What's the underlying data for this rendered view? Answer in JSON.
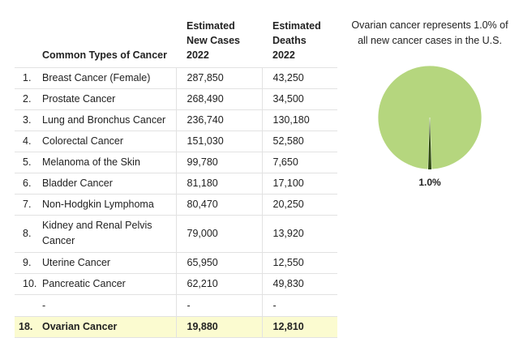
{
  "table": {
    "headers": {
      "type": "Common Types of Cancer",
      "new_cases": "Estimated New Cases 2022",
      "deaths": "Estimated Deaths 2022"
    },
    "rows": [
      {
        "rank": "1.",
        "name": "Breast Cancer (Female)",
        "new_cases": "287,850",
        "deaths": "43,250"
      },
      {
        "rank": "2.",
        "name": "Prostate Cancer",
        "new_cases": "268,490",
        "deaths": "34,500"
      },
      {
        "rank": "3.",
        "name": "Lung and Bronchus Cancer",
        "new_cases": "236,740",
        "deaths": "130,180"
      },
      {
        "rank": "4.",
        "name": "Colorectal Cancer",
        "new_cases": "151,030",
        "deaths": "52,580"
      },
      {
        "rank": "5.",
        "name": "Melanoma of the Skin",
        "new_cases": "99,780",
        "deaths": "7,650"
      },
      {
        "rank": "6.",
        "name": "Bladder Cancer",
        "new_cases": "81,180",
        "deaths": "17,100"
      },
      {
        "rank": "7.",
        "name": "Non-Hodgkin Lymphoma",
        "new_cases": "80,470",
        "deaths": "20,250"
      },
      {
        "rank": "8.",
        "name": "Kidney and Renal Pelvis Cancer",
        "new_cases": "79,000",
        "deaths": "13,920"
      },
      {
        "rank": "9.",
        "name": "Uterine Cancer",
        "new_cases": "65,950",
        "deaths": "12,550"
      },
      {
        "rank": "10.",
        "name": "Pancreatic Cancer",
        "new_cases": "62,210",
        "deaths": "49,830"
      },
      {
        "rank": "",
        "name": "-",
        "new_cases": "-",
        "deaths": "-"
      },
      {
        "rank": "18.",
        "name": "Ovarian Cancer",
        "new_cases": "19,880",
        "deaths": "12,810"
      }
    ]
  },
  "chart_data": {
    "type": "pie",
    "title": "Ovarian cancer represents 1.0% of all new cancer cases in the U.S.",
    "title_lines": [
      "Ovarian cancer represents 1.0% of",
      "all new cancer cases in the U.S."
    ],
    "slices": [
      {
        "label": "",
        "value": 99.0,
        "color": "#b5d67e"
      },
      {
        "label": "1.0%",
        "value": 1.0,
        "color": "#2f4a10"
      }
    ],
    "data_labels": [
      "1.0%"
    ]
  },
  "colors": {
    "highlight_row": "#fbfbd0",
    "grid_line": "#e2e2e2",
    "pie_main": "#b5d67e",
    "pie_slice": "#2f4a10"
  }
}
